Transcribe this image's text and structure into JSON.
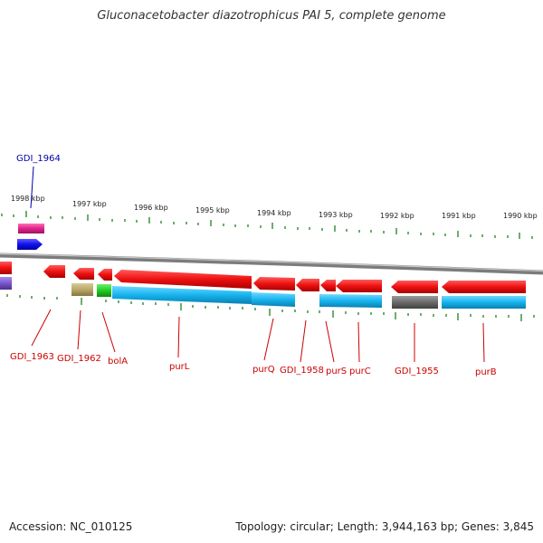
{
  "title": "Gluconacetobacter diazotrophicus PAI 5, complete genome",
  "footer": {
    "accession": "Accession: NC_010125",
    "summary": "Topology: circular; Length: 3,944,163 bp; Genes: 3,845"
  },
  "colors": {
    "backbone": "#8a8a8a",
    "tick": "#2e8b2e",
    "label_red": "#cc0000",
    "label_blue": "#0000aa",
    "gene_red": "#ee1111",
    "gene_cyan": "#16b4ee",
    "gene_magenta": "#e0228a",
    "gene_blue": "#1111ee",
    "gene_violet": "#7a55cc",
    "gene_olive": "#b8a86a",
    "gene_green": "#22cc22",
    "gene_gray": "#6a6a6a"
  },
  "scale_labels": [
    "1998 kbp",
    "1997 kbp",
    "1996 kbp",
    "1995 kbp",
    "1994 kbp",
    "1993 kbp",
    "1992 kbp",
    "1991 kbp",
    "1990 kbp"
  ],
  "gene_labels": [
    "GDI_1964",
    "GDI_1963",
    "GDI_1962",
    "bolA",
    "purL",
    "purQ",
    "GDI_1958",
    "purS",
    "purC",
    "GDI_1955",
    "purB"
  ]
}
